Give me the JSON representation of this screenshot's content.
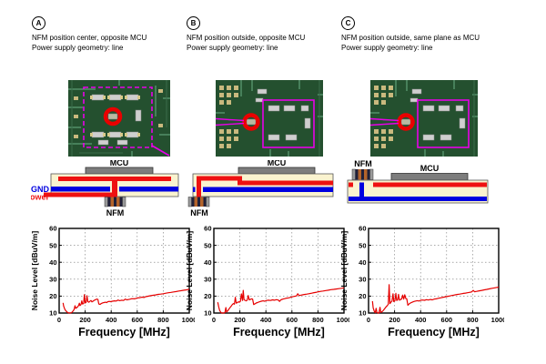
{
  "colors": {
    "chart_line": "#e60000",
    "power_red": "#ee1111",
    "gnd_blue": "#0000e0",
    "substrate_cream": "#faf3cf",
    "mcu_gray": "#7d7d7d",
    "highlight_magenta": "#e800e8",
    "pcb_green": "#24502f"
  },
  "panels": [
    {
      "letter": "A",
      "caption_line1": "NFM position center, opposite MCU",
      "caption_line2": "Power supply geometry: line",
      "cross_section": {
        "variant": "nfm-center-opposite-mcu",
        "mcu_label": "MCU",
        "nfm_label": "NFM",
        "gnd_label": "GND",
        "power_label": "Power"
      }
    },
    {
      "letter": "B",
      "caption_line1": "NFM position outside, opposite MCU",
      "caption_line2": "Power supply geometry: line",
      "cross_section": {
        "variant": "nfm-outside-opposite-mcu",
        "mcu_label": "MCU",
        "nfm_label": "NFM"
      }
    },
    {
      "letter": "C",
      "caption_line1": "NFM position outside, same plane as MCU",
      "caption_line2": "Power supply geometry: line",
      "cross_section": {
        "variant": "nfm-outside-same-plane-as-mcu",
        "mcu_label": "MCU",
        "nfm_label": "NFM"
      }
    }
  ],
  "chart_data": [
    {
      "type": "line",
      "panel": "A",
      "xlabel": "Frequency [MHz]",
      "ylabel": "Noise Level [dBuV/m]",
      "xlim": [
        0,
        1000
      ],
      "ylim": [
        10,
        60
      ],
      "xticks": [
        0,
        200,
        400,
        600,
        800,
        1000
      ],
      "yticks": [
        10,
        20,
        30,
        40,
        50,
        60
      ],
      "grid": "dotted",
      "legend": "none",
      "line_color": "#e60000",
      "points": [
        [
          30,
          16
        ],
        [
          35,
          14
        ],
        [
          45,
          12
        ],
        [
          55,
          11
        ],
        [
          65,
          10.3
        ],
        [
          75,
          10
        ],
        [
          85,
          10
        ],
        [
          95,
          10.2
        ],
        [
          105,
          11
        ],
        [
          115,
          12
        ],
        [
          122,
          14.3
        ],
        [
          128,
          12.8
        ],
        [
          135,
          13.2
        ],
        [
          142,
          13.6
        ],
        [
          150,
          14.6
        ],
        [
          155,
          15.8
        ],
        [
          160,
          14.4
        ],
        [
          168,
          15
        ],
        [
          174,
          17.2
        ],
        [
          180,
          15.3
        ],
        [
          188,
          15.6
        ],
        [
          194,
          20.8
        ],
        [
          200,
          15.9
        ],
        [
          208,
          16.4
        ],
        [
          214,
          20.2
        ],
        [
          220,
          16.8
        ],
        [
          228,
          16.4
        ],
        [
          236,
          16.9
        ],
        [
          245,
          17.4
        ],
        [
          252,
          16.6
        ],
        [
          260,
          17
        ],
        [
          270,
          17.5
        ],
        [
          280,
          17.9
        ],
        [
          290,
          18.2
        ],
        [
          298,
          18
        ],
        [
          305,
          15.3
        ],
        [
          315,
          15.1
        ],
        [
          325,
          15.7
        ],
        [
          335,
          16
        ],
        [
          345,
          16.2
        ],
        [
          355,
          16.4
        ],
        [
          365,
          16.2
        ],
        [
          375,
          16.7
        ],
        [
          385,
          16.9
        ],
        [
          395,
          16.7
        ],
        [
          410,
          17
        ],
        [
          425,
          17.2
        ],
        [
          440,
          17.1
        ],
        [
          452,
          17.7
        ],
        [
          465,
          17.3
        ],
        [
          480,
          17.6
        ],
        [
          495,
          17.4
        ],
        [
          508,
          18.2
        ],
        [
          520,
          17.8
        ],
        [
          540,
          18.1
        ],
        [
          560,
          18.5
        ],
        [
          580,
          18.4
        ],
        [
          600,
          18.9
        ],
        [
          620,
          19.1
        ],
        [
          640,
          19.4
        ],
        [
          652,
          19.2
        ],
        [
          665,
          19.7
        ],
        [
          680,
          19.9
        ],
        [
          700,
          20.2
        ],
        [
          720,
          20.5
        ],
        [
          740,
          20.7
        ],
        [
          760,
          21
        ],
        [
          780,
          21.2
        ],
        [
          800,
          21.4
        ],
        [
          820,
          21.7
        ],
        [
          840,
          22
        ],
        [
          860,
          22.2
        ],
        [
          880,
          22.5
        ],
        [
          900,
          22.7
        ],
        [
          920,
          23
        ],
        [
          940,
          23.2
        ],
        [
          960,
          23.5
        ],
        [
          980,
          23.7
        ],
        [
          1000,
          24.1
        ]
      ]
    },
    {
      "type": "line",
      "panel": "B",
      "xlabel": "Frequency [MHz]",
      "ylabel": "Noise Level [dBuV/m]",
      "xlim": [
        0,
        1000
      ],
      "ylim": [
        10,
        60
      ],
      "xticks": [
        0,
        200,
        400,
        600,
        800,
        1000
      ],
      "yticks": [
        10,
        20,
        30,
        40,
        50,
        60
      ],
      "grid": "dotted",
      "legend": "none",
      "line_color": "#e60000",
      "points": [
        [
          30,
          16.4
        ],
        [
          38,
          13.5
        ],
        [
          45,
          11.5
        ],
        [
          55,
          10.2
        ],
        [
          62,
          10
        ],
        [
          70,
          10
        ],
        [
          78,
          10
        ],
        [
          85,
          10.4
        ],
        [
          92,
          13.2
        ],
        [
          98,
          10.6
        ],
        [
          108,
          11.4
        ],
        [
          118,
          12.6
        ],
        [
          126,
          13.4
        ],
        [
          134,
          14.2
        ],
        [
          142,
          15
        ],
        [
          150,
          15.6
        ],
        [
          158,
          15.2
        ],
        [
          165,
          19.3
        ],
        [
          172,
          15.8
        ],
        [
          180,
          16.2
        ],
        [
          188,
          16.6
        ],
        [
          196,
          16.4
        ],
        [
          204,
          17
        ],
        [
          212,
          21.3
        ],
        [
          220,
          17.4
        ],
        [
          226,
          23.4
        ],
        [
          232,
          17.8
        ],
        [
          240,
          17.5
        ],
        [
          248,
          17.2
        ],
        [
          256,
          17.6
        ],
        [
          264,
          20.4
        ],
        [
          272,
          17.8
        ],
        [
          280,
          18
        ],
        [
          290,
          18.4
        ],
        [
          298,
          18.2
        ],
        [
          306,
          15
        ],
        [
          315,
          15.4
        ],
        [
          325,
          15.9
        ],
        [
          335,
          16.2
        ],
        [
          345,
          16.5
        ],
        [
          355,
          16.8
        ],
        [
          365,
          17
        ],
        [
          378,
          17.2
        ],
        [
          390,
          17
        ],
        [
          405,
          17.4
        ],
        [
          420,
          17.6
        ],
        [
          435,
          17.4
        ],
        [
          450,
          17.8
        ],
        [
          465,
          17.6
        ],
        [
          480,
          17.9
        ],
        [
          495,
          17.7
        ],
        [
          505,
          16.9
        ],
        [
          515,
          17.8
        ],
        [
          530,
          18.2
        ],
        [
          545,
          18.5
        ],
        [
          560,
          18.8
        ],
        [
          575,
          19
        ],
        [
          590,
          19.3
        ],
        [
          605,
          19.6
        ],
        [
          620,
          19.9
        ],
        [
          635,
          20.1
        ],
        [
          645,
          21.4
        ],
        [
          655,
          20.3
        ],
        [
          670,
          20.6
        ],
        [
          685,
          20.8
        ],
        [
          700,
          21
        ],
        [
          715,
          21.2
        ],
        [
          730,
          21.4
        ],
        [
          745,
          21.6
        ],
        [
          760,
          21.9
        ],
        [
          775,
          22.1
        ],
        [
          790,
          22.3
        ],
        [
          805,
          22.6
        ],
        [
          820,
          22.8
        ],
        [
          840,
          23
        ],
        [
          860,
          23.3
        ],
        [
          880,
          23.5
        ],
        [
          900,
          23.8
        ],
        [
          920,
          24
        ],
        [
          940,
          24.2
        ],
        [
          960,
          24.4
        ],
        [
          980,
          24.6
        ],
        [
          1000,
          24.9
        ]
      ]
    },
    {
      "type": "line",
      "panel": "C",
      "xlabel": "Frequency [MHz]",
      "ylabel": "Noise Level [dBuV/m]",
      "xlim": [
        0,
        1000
      ],
      "ylim": [
        10,
        60
      ],
      "xticks": [
        0,
        200,
        400,
        600,
        800,
        1000
      ],
      "yticks": [
        10,
        20,
        30,
        40,
        50,
        60
      ],
      "grid": "dotted",
      "legend": "none",
      "line_color": "#e60000",
      "points": [
        [
          30,
          17
        ],
        [
          36,
          13
        ],
        [
          44,
          11
        ],
        [
          52,
          10.2
        ],
        [
          58,
          12.8
        ],
        [
          64,
          10.4
        ],
        [
          72,
          10
        ],
        [
          80,
          10
        ],
        [
          88,
          13.4
        ],
        [
          94,
          10.4
        ],
        [
          104,
          10.8
        ],
        [
          114,
          11.6
        ],
        [
          124,
          12.6
        ],
        [
          134,
          13.6
        ],
        [
          144,
          14.4
        ],
        [
          152,
          15.2
        ],
        [
          158,
          26.8
        ],
        [
          164,
          15.6
        ],
        [
          172,
          16.4
        ],
        [
          180,
          17
        ],
        [
          188,
          21.4
        ],
        [
          194,
          16.8
        ],
        [
          202,
          17.2
        ],
        [
          210,
          21.6
        ],
        [
          216,
          17.4
        ],
        [
          224,
          17.8
        ],
        [
          230,
          21
        ],
        [
          238,
          17.6
        ],
        [
          246,
          18
        ],
        [
          254,
          18.2
        ],
        [
          262,
          20.6
        ],
        [
          270,
          18.2
        ],
        [
          278,
          20.8
        ],
        [
          286,
          18.6
        ],
        [
          294,
          18.4
        ],
        [
          302,
          14.6
        ],
        [
          312,
          15.4
        ],
        [
          322,
          15.9
        ],
        [
          332,
          16.3
        ],
        [
          342,
          16.6
        ],
        [
          352,
          16.9
        ],
        [
          362,
          17.1
        ],
        [
          375,
          17.3
        ],
        [
          388,
          17.1
        ],
        [
          400,
          17.5
        ],
        [
          415,
          17.7
        ],
        [
          430,
          17.5
        ],
        [
          445,
          17.9
        ],
        [
          460,
          17.7
        ],
        [
          475,
          18
        ],
        [
          490,
          17.8
        ],
        [
          505,
          18.2
        ],
        [
          520,
          18.4
        ],
        [
          535,
          18.7
        ],
        [
          550,
          18.9
        ],
        [
          565,
          19.2
        ],
        [
          580,
          19.4
        ],
        [
          595,
          19.7
        ],
        [
          610,
          19.9
        ],
        [
          625,
          20.1
        ],
        [
          640,
          20.4
        ],
        [
          655,
          20.6
        ],
        [
          670,
          20.8
        ],
        [
          685,
          21
        ],
        [
          700,
          21.2
        ],
        [
          715,
          21.4
        ],
        [
          730,
          21.6
        ],
        [
          745,
          21.8
        ],
        [
          760,
          22
        ],
        [
          775,
          22.2
        ],
        [
          790,
          22.4
        ],
        [
          805,
          23.4
        ],
        [
          815,
          22.6
        ],
        [
          830,
          22.8
        ],
        [
          850,
          23.1
        ],
        [
          870,
          23.4
        ],
        [
          890,
          23.7
        ],
        [
          910,
          24
        ],
        [
          930,
          24.3
        ],
        [
          950,
          24.6
        ],
        [
          970,
          24.9
        ],
        [
          1000,
          25.3
        ]
      ]
    }
  ]
}
